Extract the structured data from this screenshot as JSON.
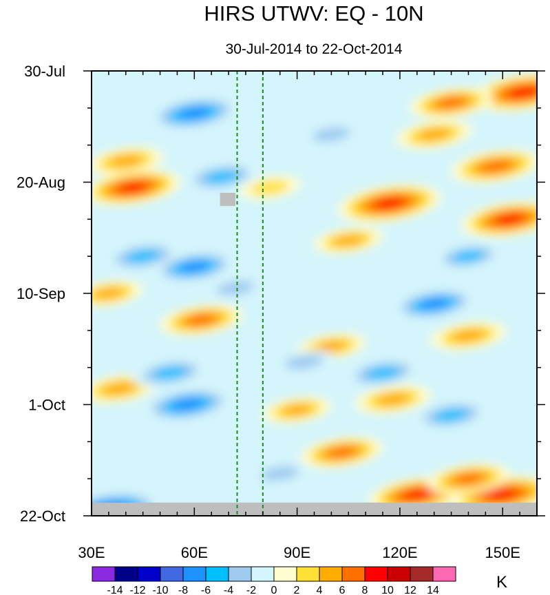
{
  "chart_data": {
    "type": "heatmap",
    "title": "HIRS UTWV: EQ - 10N",
    "subtitle": "30-Jul-2014 to 22-Oct-2014",
    "x_axis": {
      "range": [
        30,
        160
      ],
      "units": "degrees E longitude",
      "ticks": [
        30,
        60,
        90,
        120,
        150
      ],
      "tick_labels": [
        "30E",
        "60E",
        "90E",
        "120E",
        "150E"
      ]
    },
    "y_axis": {
      "range_days": [
        0,
        84
      ],
      "orientation": "time increases downward",
      "ticks_days": [
        0,
        21,
        42,
        63,
        84
      ],
      "tick_labels": [
        "30-Jul",
        "20-Aug",
        "10-Sep",
        "1-Oct",
        "22-Oct"
      ]
    },
    "reference_lines_lon": [
      72.5,
      80
    ],
    "colorbar": {
      "levels": [
        -14,
        -12,
        -10,
        -8,
        -6,
        -4,
        -2,
        0,
        2,
        4,
        6,
        8,
        10,
        12,
        14
      ],
      "labels": [
        "-14",
        "-12",
        "-10",
        "-8",
        "-6",
        "-4",
        "-2",
        "0",
        "2",
        "4",
        "6",
        "8",
        "10",
        "12",
        "14"
      ],
      "colors": [
        "#8a2be2",
        "#00008b",
        "#0000cd",
        "#4169e1",
        "#1e90ff",
        "#00bfff",
        "#a0cbf0",
        "#d5f5fc",
        "#fffccf",
        "#ffe135",
        "#ffac00",
        "#ff7000",
        "#ff0000",
        "#cc0000",
        "#a52a2a",
        "#ff69b4"
      ],
      "units": "K"
    },
    "missing_color": "#bebebe",
    "missing_regions": [
      {
        "lon": [
          30,
          160
        ],
        "day": [
          81.5,
          84
        ]
      },
      {
        "lon": [
          67.5,
          72
        ],
        "day": [
          23,
          25.5
        ]
      }
    ],
    "features": [
      {
        "lon": 42,
        "day": 22,
        "value": 9
      },
      {
        "lon": 40,
        "day": 17,
        "value": 6
      },
      {
        "lon": 117,
        "day": 25,
        "value": 10
      },
      {
        "lon": 152,
        "day": 28,
        "value": 9
      },
      {
        "lon": 156,
        "day": 4,
        "value": 10
      },
      {
        "lon": 135,
        "day": 6,
        "value": 7
      },
      {
        "lon": 148,
        "day": 18,
        "value": 8
      },
      {
        "lon": 130,
        "day": 12,
        "value": 6
      },
      {
        "lon": 62,
        "day": 47,
        "value": 7
      },
      {
        "lon": 35,
        "day": 42,
        "value": 5
      },
      {
        "lon": 100,
        "day": 52,
        "value": 5
      },
      {
        "lon": 140,
        "day": 50,
        "value": 6
      },
      {
        "lon": 118,
        "day": 62,
        "value": 6
      },
      {
        "lon": 38,
        "day": 60,
        "value": 6
      },
      {
        "lon": 103,
        "day": 72,
        "value": 7
      },
      {
        "lon": 90,
        "day": 64,
        "value": 5
      },
      {
        "lon": 150,
        "day": 80,
        "value": 10
      },
      {
        "lon": 125,
        "day": 80,
        "value": 9
      },
      {
        "lon": 140,
        "day": 77,
        "value": 7
      },
      {
        "lon": 105,
        "day": 32,
        "value": 5
      },
      {
        "lon": 82,
        "day": 22,
        "value": 4
      },
      {
        "lon": 60,
        "day": 8,
        "value": -8
      },
      {
        "lon": 45,
        "day": 35,
        "value": -6
      },
      {
        "lon": 60,
        "day": 37,
        "value": -7
      },
      {
        "lon": 72,
        "day": 41,
        "value": -4
      },
      {
        "lon": 58,
        "day": 63,
        "value": -8
      },
      {
        "lon": 53,
        "day": 57,
        "value": -6
      },
      {
        "lon": 92,
        "day": 55,
        "value": -4
      },
      {
        "lon": 130,
        "day": 44,
        "value": -7
      },
      {
        "lon": 115,
        "day": 57,
        "value": -6
      },
      {
        "lon": 135,
        "day": 65,
        "value": -6
      },
      {
        "lon": 140,
        "day": 35,
        "value": -5
      },
      {
        "lon": 100,
        "day": 12,
        "value": -4
      },
      {
        "lon": 35,
        "day": 83,
        "value": -10
      },
      {
        "lon": 68,
        "day": 20,
        "value": -6
      },
      {
        "lon": 85,
        "day": 76,
        "value": -4
      }
    ]
  }
}
